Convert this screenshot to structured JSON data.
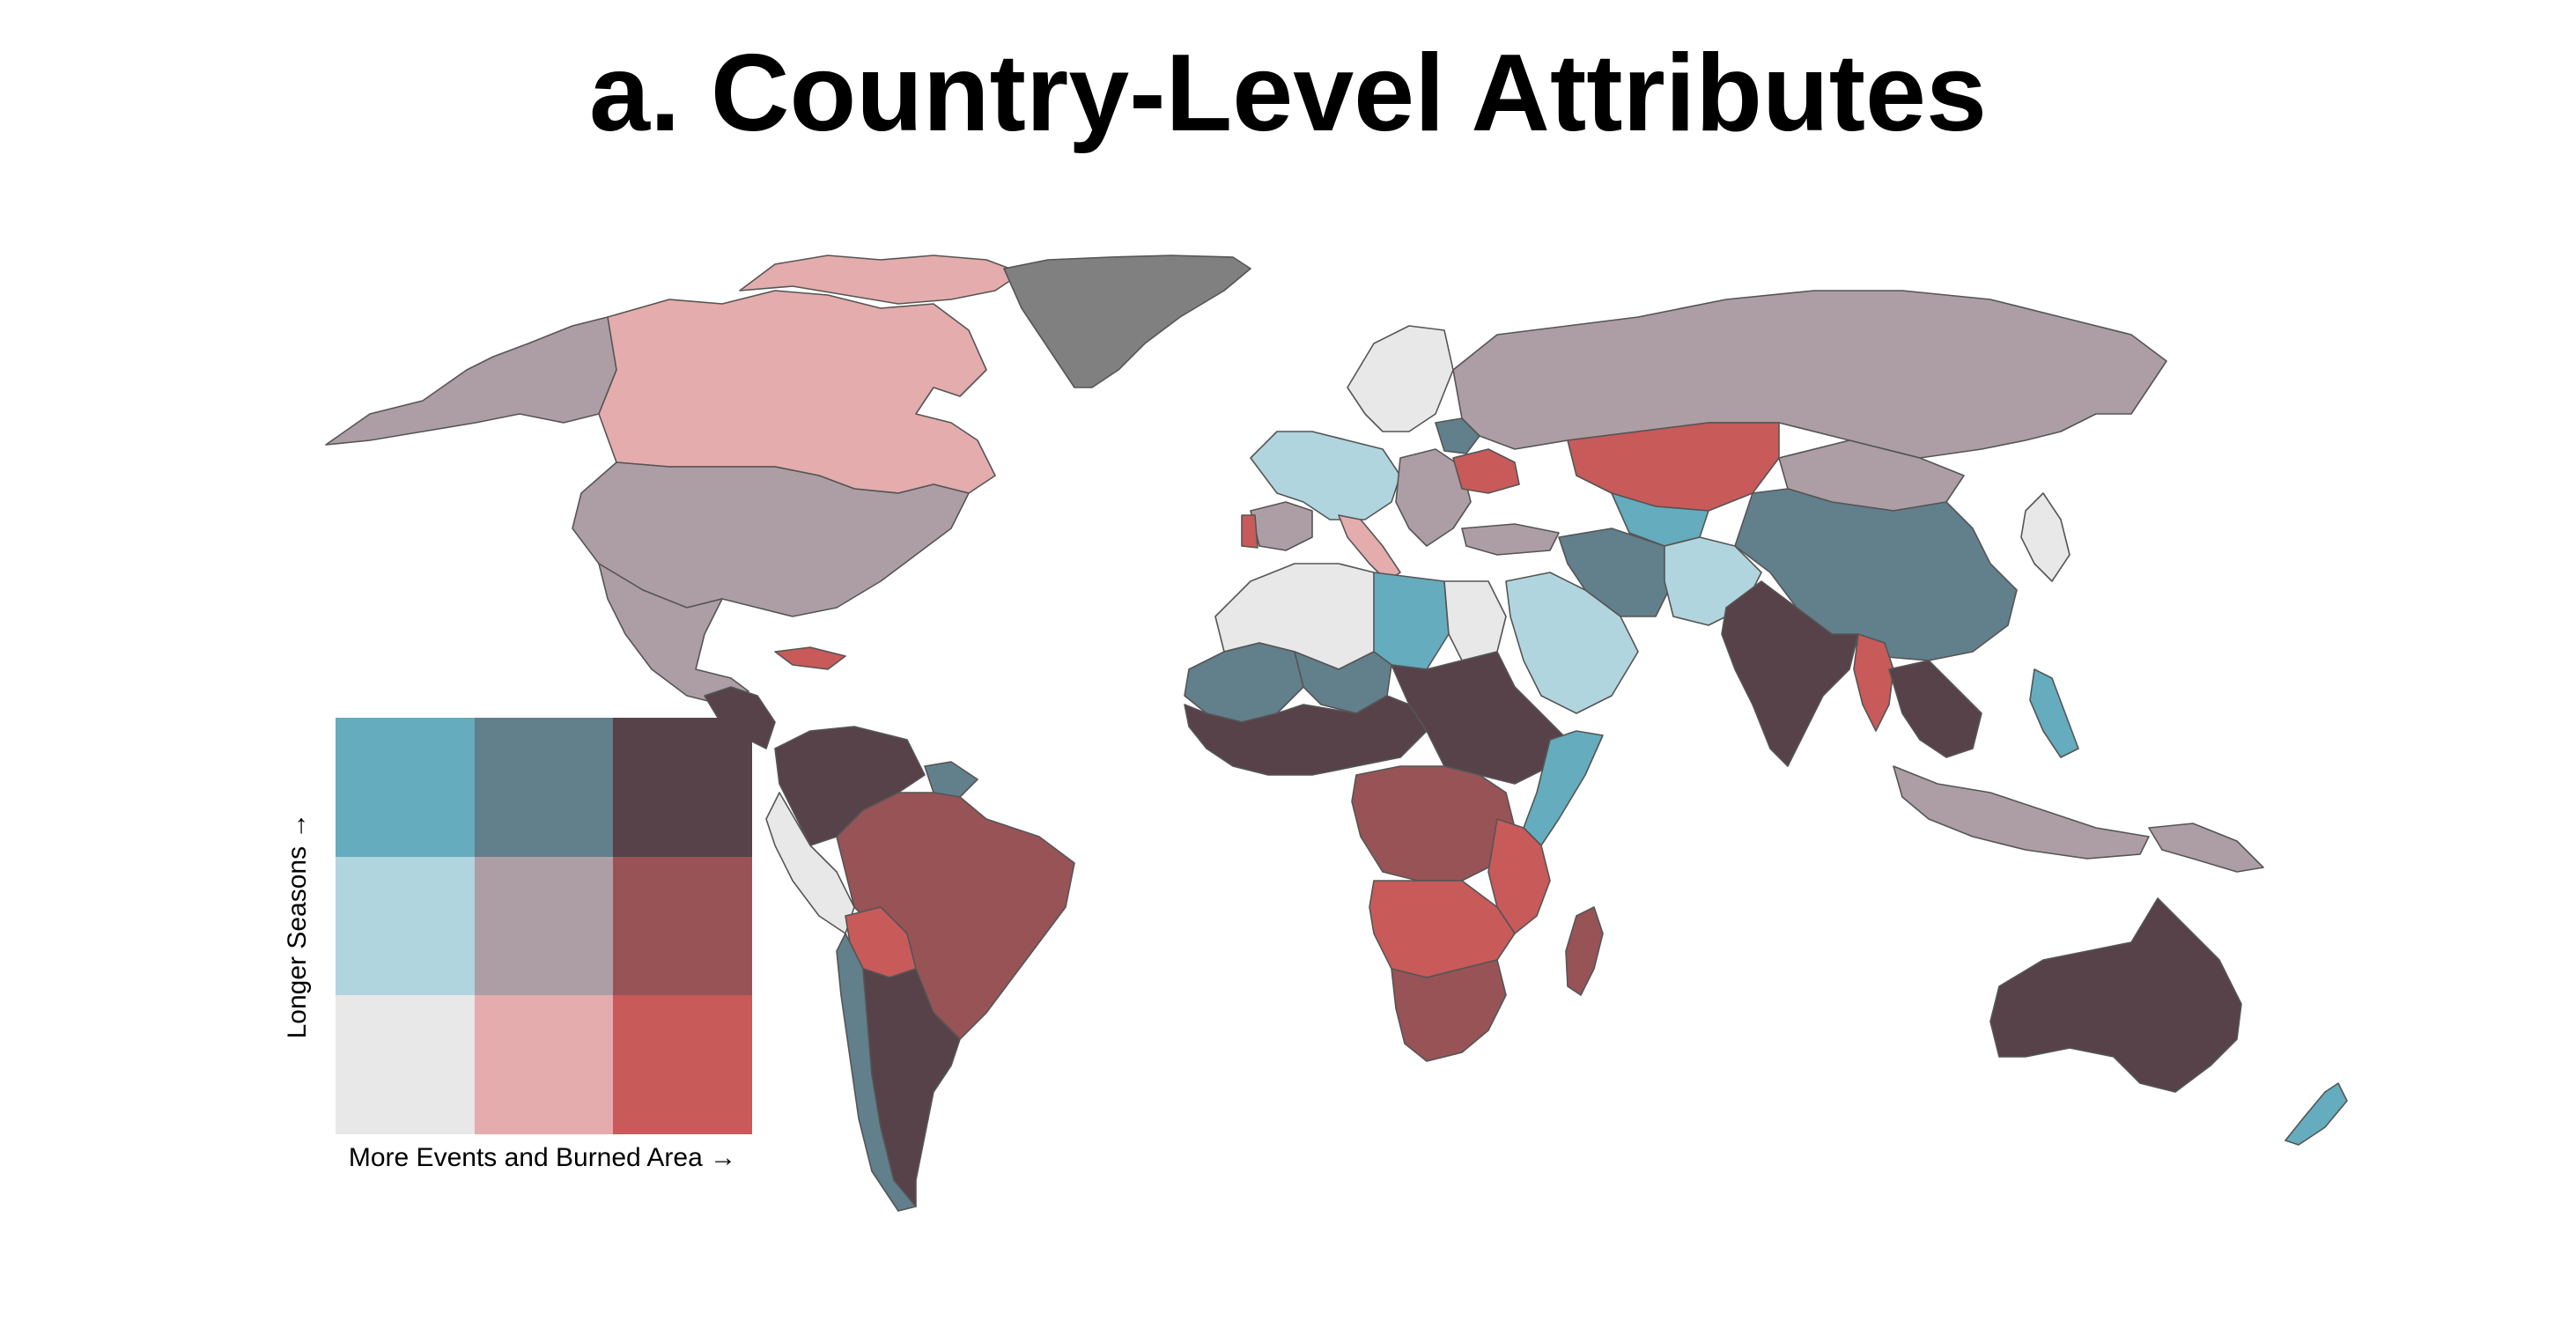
{
  "title": "a. Country-Level Attributes",
  "legend": {
    "x_label": "More Events and Burned Area →",
    "y_label": "Longer Seasons →",
    "grid": [
      [
        "#64acbe",
        "#627f8c",
        "#574249"
      ],
      [
        "#b0d5df",
        "#ad9ea5",
        "#985356"
      ],
      [
        "#e8e8e8",
        "#e4acac",
        "#c85a5a"
      ]
    ]
  },
  "map": {
    "no_data_color": "#808080",
    "regions": [
      {
        "name": "alaska",
        "color": "#ad9ea5"
      },
      {
        "name": "canada",
        "color": "#e4acac"
      },
      {
        "name": "canada-arctic-islands",
        "color": "#e4acac"
      },
      {
        "name": "greenland",
        "color": "#808080"
      },
      {
        "name": "united-states",
        "color": "#ad9ea5"
      },
      {
        "name": "mexico",
        "color": "#ad9ea5"
      },
      {
        "name": "central-america",
        "color": "#574249"
      },
      {
        "name": "cuba",
        "color": "#c85a5a"
      },
      {
        "name": "venezuela-colombia",
        "color": "#574249"
      },
      {
        "name": "guianas",
        "color": "#627f8c"
      },
      {
        "name": "ecuador-peru",
        "color": "#e8e8e8"
      },
      {
        "name": "brazil",
        "color": "#985356"
      },
      {
        "name": "bolivia",
        "color": "#c85a5a"
      },
      {
        "name": "chile",
        "color": "#627f8c"
      },
      {
        "name": "argentina",
        "color": "#574249"
      },
      {
        "name": "scandinavia",
        "color": "#e8e8e8"
      },
      {
        "name": "western-europe",
        "color": "#b0d5df"
      },
      {
        "name": "iberia",
        "color": "#ad9ea5"
      },
      {
        "name": "portugal",
        "color": "#c85a5a"
      },
      {
        "name": "italy",
        "color": "#e4acac"
      },
      {
        "name": "eastern-europe",
        "color": "#ad9ea5"
      },
      {
        "name": "ukraine",
        "color": "#c85a5a"
      },
      {
        "name": "belarus",
        "color": "#627f8c"
      },
      {
        "name": "russia",
        "color": "#ad9ea5"
      },
      {
        "name": "kazakhstan",
        "color": "#c85a5a"
      },
      {
        "name": "central-asia",
        "color": "#64acbe"
      },
      {
        "name": "mongolia",
        "color": "#ad9ea5"
      },
      {
        "name": "china",
        "color": "#627f8c"
      },
      {
        "name": "turkey",
        "color": "#ad9ea5"
      },
      {
        "name": "iran",
        "color": "#627f8c"
      },
      {
        "name": "afghanistan-pakistan",
        "color": "#b0d5df"
      },
      {
        "name": "arabia",
        "color": "#b0d5df"
      },
      {
        "name": "north-africa-west",
        "color": "#e8e8e8"
      },
      {
        "name": "libya",
        "color": "#64acbe"
      },
      {
        "name": "egypt",
        "color": "#e8e8e8"
      },
      {
        "name": "mauritania-mali",
        "color": "#627f8c"
      },
      {
        "name": "sahel-west-africa",
        "color": "#574249"
      },
      {
        "name": "niger",
        "color": "#627f8c"
      },
      {
        "name": "sudan-ethiopia",
        "color": "#574249"
      },
      {
        "name": "somalia",
        "color": "#64acbe"
      },
      {
        "name": "central-africa",
        "color": "#985356"
      },
      {
        "name": "east-africa",
        "color": "#c85a5a"
      },
      {
        "name": "angola-zambia",
        "color": "#c85a5a"
      },
      {
        "name": "southern-africa",
        "color": "#985356"
      },
      {
        "name": "madagascar",
        "color": "#985356"
      },
      {
        "name": "india",
        "color": "#574249"
      },
      {
        "name": "myanmar",
        "color": "#c85a5a"
      },
      {
        "name": "indochina",
        "color": "#574249"
      },
      {
        "name": "malaysia-indonesia",
        "color": "#ad9ea5"
      },
      {
        "name": "philippines",
        "color": "#64acbe"
      },
      {
        "name": "japan-korea",
        "color": "#e8e8e8"
      },
      {
        "name": "papua-new-guinea",
        "color": "#ad9ea5"
      },
      {
        "name": "australia",
        "color": "#574249"
      },
      {
        "name": "new-zealand",
        "color": "#64acbe"
      }
    ]
  }
}
